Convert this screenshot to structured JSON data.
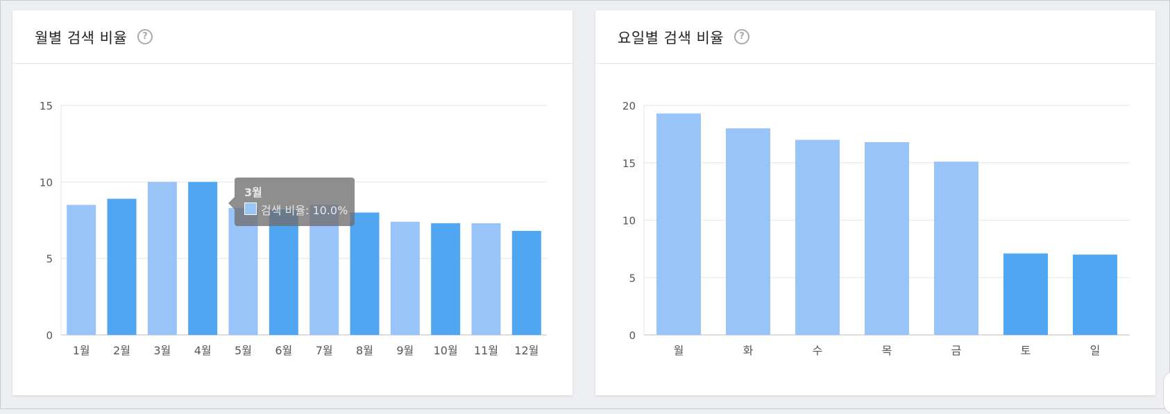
{
  "colors": {
    "light": "#99c4f8",
    "dark": "#51a6f1",
    "grid": "#e6e6e6",
    "axis": "#bdbdbd"
  },
  "cards": [
    {
      "title": "월별 검색 비율",
      "help_icon": "question-circle-icon"
    },
    {
      "title": "요일별 검색 비율",
      "help_icon": "question-circle-icon"
    }
  ],
  "tooltip": {
    "title": "3월",
    "label": "검색 비율: 10.0%"
  },
  "chart_data": [
    {
      "type": "bar",
      "title": "월별 검색 비율",
      "categories": [
        "1월",
        "2월",
        "3월",
        "4월",
        "5월",
        "6월",
        "7월",
        "8월",
        "9월",
        "10월",
        "11월",
        "12월"
      ],
      "series": [
        {
          "name": "검색 비율",
          "values": [
            8.5,
            8.9,
            10.0,
            10.0,
            8.3,
            8.2,
            8.5,
            8.0,
            7.4,
            7.3,
            7.3,
            6.8
          ]
        }
      ],
      "bar_colors": [
        "light",
        "dark",
        "light",
        "dark",
        "light",
        "dark",
        "light",
        "dark",
        "light",
        "dark",
        "light",
        "dark"
      ],
      "ylim": [
        0,
        15
      ],
      "yticks": [
        0,
        5,
        10,
        15
      ],
      "grid": true,
      "legend": "none"
    },
    {
      "type": "bar",
      "title": "요일별 검색 비율",
      "categories": [
        "월",
        "화",
        "수",
        "목",
        "금",
        "토",
        "일"
      ],
      "series": [
        {
          "name": "검색 비율",
          "values": [
            19.3,
            18.0,
            17.0,
            16.8,
            15.1,
            7.1,
            7.0
          ]
        }
      ],
      "bar_colors": [
        "light",
        "light",
        "light",
        "light",
        "light",
        "dark",
        "dark"
      ],
      "ylim": [
        0,
        20
      ],
      "yticks": [
        0,
        5,
        10,
        15,
        20
      ],
      "grid": true,
      "legend": "none"
    }
  ]
}
